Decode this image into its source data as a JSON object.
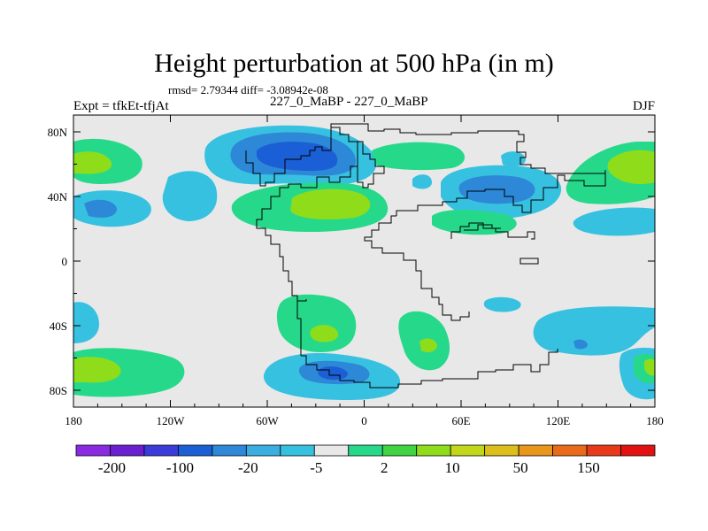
{
  "title": "Height perturbation at 500 hPa (in m)",
  "stats": "rmsd= 2.79344 diff= -3.08942e-08",
  "left_label": "Expt = tfkEt-tfjAt",
  "center_label": "227_0_MaBP - 227_0_MaBP",
  "right_label": "DJF",
  "colors": {
    "background_band": "#e8e8e8",
    "coastline": "#000000"
  },
  "axes": {
    "x_ticks": [
      "180",
      "120W",
      "60W",
      "0",
      "60E",
      "120E",
      "180"
    ],
    "y_ticks": [
      "80N",
      "40N",
      "0",
      "40S",
      "80S"
    ]
  },
  "colorbar": {
    "colors": [
      "#8a2be2",
      "#6a1fd0",
      "#3b3bd9",
      "#1a5fd6",
      "#2d88d8",
      "#3aaee0",
      "#37c1e0",
      "#e8e8e8",
      "#26d98a",
      "#41d341",
      "#8fdc1a",
      "#c2d61a",
      "#dcbf1a",
      "#e8971a",
      "#e86a1a",
      "#e83a1a",
      "#e31212"
    ],
    "labels": [
      "-200",
      "-100",
      "-20",
      "-5",
      "2",
      "10",
      "50",
      "150"
    ]
  }
}
